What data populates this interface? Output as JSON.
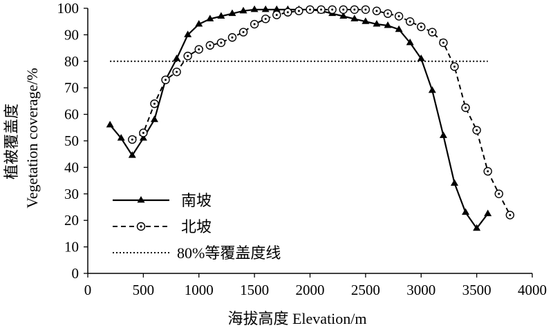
{
  "chart_data": {
    "type": "line",
    "xlabel": "海拔高度 Elevation/m",
    "ylabel_cn": "植被覆盖度",
    "ylabel_en": "Vegetation coverage/%",
    "xlim": [
      0,
      4000
    ],
    "ylim": [
      0,
      100
    ],
    "x_ticks": [
      0,
      500,
      1000,
      1500,
      2000,
      2500,
      3000,
      3500,
      4000
    ],
    "y_ticks": [
      0,
      10,
      20,
      30,
      40,
      50,
      60,
      70,
      80,
      90,
      100
    ],
    "grid": false,
    "legend_position": "bottom-left",
    "reference_line": {
      "name": "80%等覆盖度线",
      "y": 80,
      "x_range": [
        200,
        3600
      ],
      "style": "dotted"
    },
    "series": [
      {
        "name": "南坡",
        "marker": "triangle",
        "line_style": "solid",
        "points": [
          [
            200,
            56
          ],
          [
            300,
            51
          ],
          [
            400,
            44.5
          ],
          [
            500,
            51
          ],
          [
            600,
            58
          ],
          [
            700,
            73
          ],
          [
            800,
            81
          ],
          [
            900,
            90
          ],
          [
            1000,
            94
          ],
          [
            1100,
            96
          ],
          [
            1200,
            97
          ],
          [
            1300,
            98
          ],
          [
            1400,
            99
          ],
          [
            1500,
            99.5
          ],
          [
            1600,
            99.5
          ],
          [
            1700,
            99.5
          ],
          [
            1800,
            99.5
          ],
          [
            1900,
            99.5
          ],
          [
            2000,
            99.5
          ],
          [
            2100,
            99
          ],
          [
            2200,
            98
          ],
          [
            2300,
            97
          ],
          [
            2400,
            96
          ],
          [
            2500,
            95
          ],
          [
            2600,
            94
          ],
          [
            2700,
            93.5
          ],
          [
            2800,
            92
          ],
          [
            2900,
            87
          ],
          [
            3000,
            81
          ],
          [
            3100,
            69
          ],
          [
            3200,
            52
          ],
          [
            3300,
            34
          ],
          [
            3400,
            23
          ],
          [
            3500,
            17
          ],
          [
            3600,
            22.5
          ]
        ]
      },
      {
        "name": "北坡",
        "marker": "circle",
        "line_style": "dashed",
        "points": [
          [
            400,
            50.5
          ],
          [
            500,
            53
          ],
          [
            600,
            64
          ],
          [
            700,
            73
          ],
          [
            800,
            76
          ],
          [
            900,
            82
          ],
          [
            1000,
            84.5
          ],
          [
            1100,
            86
          ],
          [
            1200,
            87
          ],
          [
            1300,
            89
          ],
          [
            1400,
            91
          ],
          [
            1500,
            94
          ],
          [
            1600,
            96
          ],
          [
            1700,
            97.5
          ],
          [
            1800,
            98.5
          ],
          [
            1900,
            99
          ],
          [
            2000,
            99.5
          ],
          [
            2100,
            99.5
          ],
          [
            2200,
            99.5
          ],
          [
            2300,
            99.5
          ],
          [
            2400,
            99.5
          ],
          [
            2500,
            99.5
          ],
          [
            2600,
            99
          ],
          [
            2700,
            98
          ],
          [
            2800,
            97
          ],
          [
            2900,
            95
          ],
          [
            3000,
            93
          ],
          [
            3100,
            91
          ],
          [
            3200,
            87
          ],
          [
            3300,
            78
          ],
          [
            3400,
            62.5
          ],
          [
            3500,
            54
          ],
          [
            3600,
            38.5
          ],
          [
            3700,
            30
          ],
          [
            3800,
            22
          ]
        ]
      }
    ]
  }
}
